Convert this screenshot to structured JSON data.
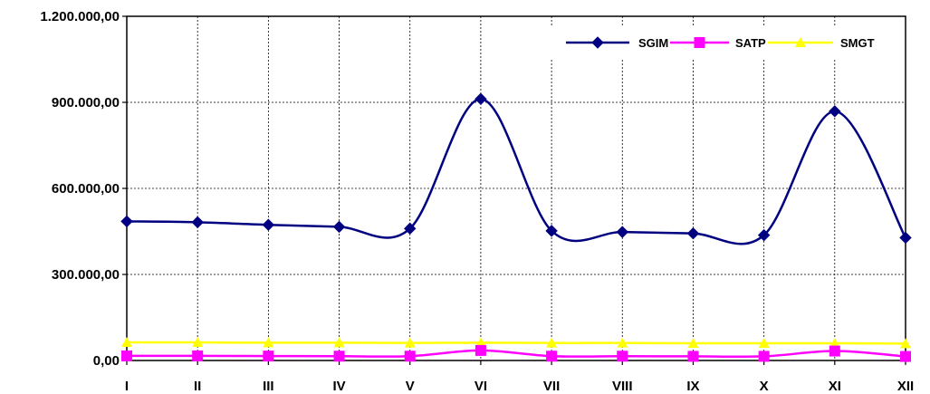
{
  "chart_data": {
    "type": "line",
    "categories": [
      "I",
      "II",
      "III",
      "IV",
      "V",
      "VI",
      "VII",
      "VIII",
      "IX",
      "X",
      "XI",
      "XII"
    ],
    "ylim": [
      0,
      1200000
    ],
    "yticks": [
      "0,00",
      "300.000,00",
      "600.000,00",
      "900.000,00",
      "1.200.000,00"
    ],
    "ytick_values": [
      0,
      300000,
      600000,
      900000,
      1200000
    ],
    "grid": true,
    "legend_position": "top-right",
    "series": [
      {
        "name": "SGIM",
        "color": "#000080",
        "marker": "diamond",
        "values": [
          485000,
          482000,
          473000,
          466000,
          460000,
          912000,
          452000,
          448000,
          443000,
          437000,
          869000,
          428000
        ]
      },
      {
        "name": "SATP",
        "color": "#FF00FF",
        "marker": "square",
        "values": [
          16000,
          16000,
          15500,
          15000,
          15000,
          35000,
          15000,
          15000,
          14500,
          14500,
          33000,
          14000
        ]
      },
      {
        "name": "SMGT",
        "color": "#FFFF00",
        "marker": "triangle",
        "values": [
          63000,
          63000,
          62000,
          62000,
          61000,
          62000,
          61000,
          61000,
          60000,
          60000,
          60000,
          59000
        ]
      }
    ]
  }
}
